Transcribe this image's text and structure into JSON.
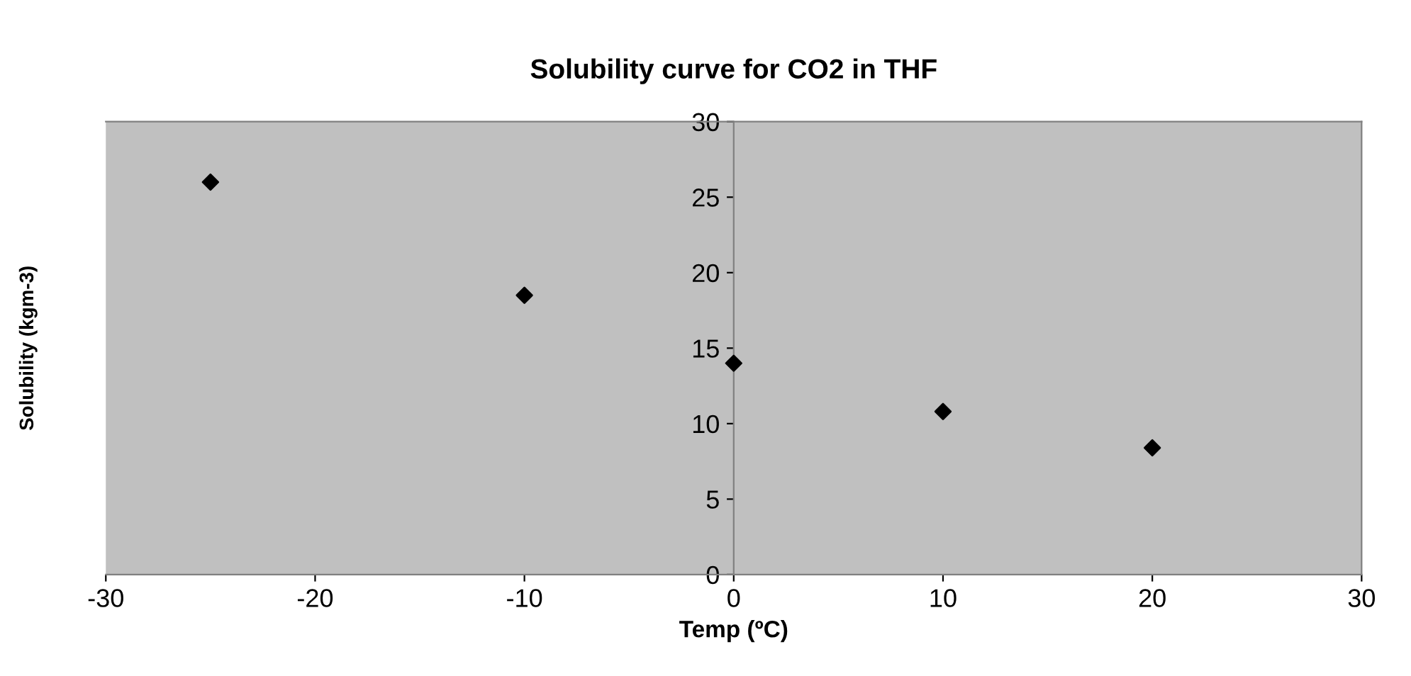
{
  "chart_data": {
    "type": "scatter",
    "title": "Solubility curve for CO2 in THF",
    "xlabel": "Temp (ºC)",
    "ylabel": "Solubility (kgm-3)",
    "x": [
      -25,
      -10,
      0,
      10,
      20
    ],
    "series": [
      {
        "color": "#000000",
        "values": [
          26,
          18.5,
          14,
          10.8,
          8.4
        ]
      }
    ],
    "marker": "diamond",
    "xlim": [
      -30,
      30
    ],
    "ylim": [
      0,
      30
    ],
    "xticks": [
      -30,
      -20,
      -10,
      0,
      10,
      20,
      30
    ],
    "yticks": [
      0,
      5,
      10,
      15,
      20,
      25,
      30
    ],
    "grid": false,
    "legend": false
  }
}
